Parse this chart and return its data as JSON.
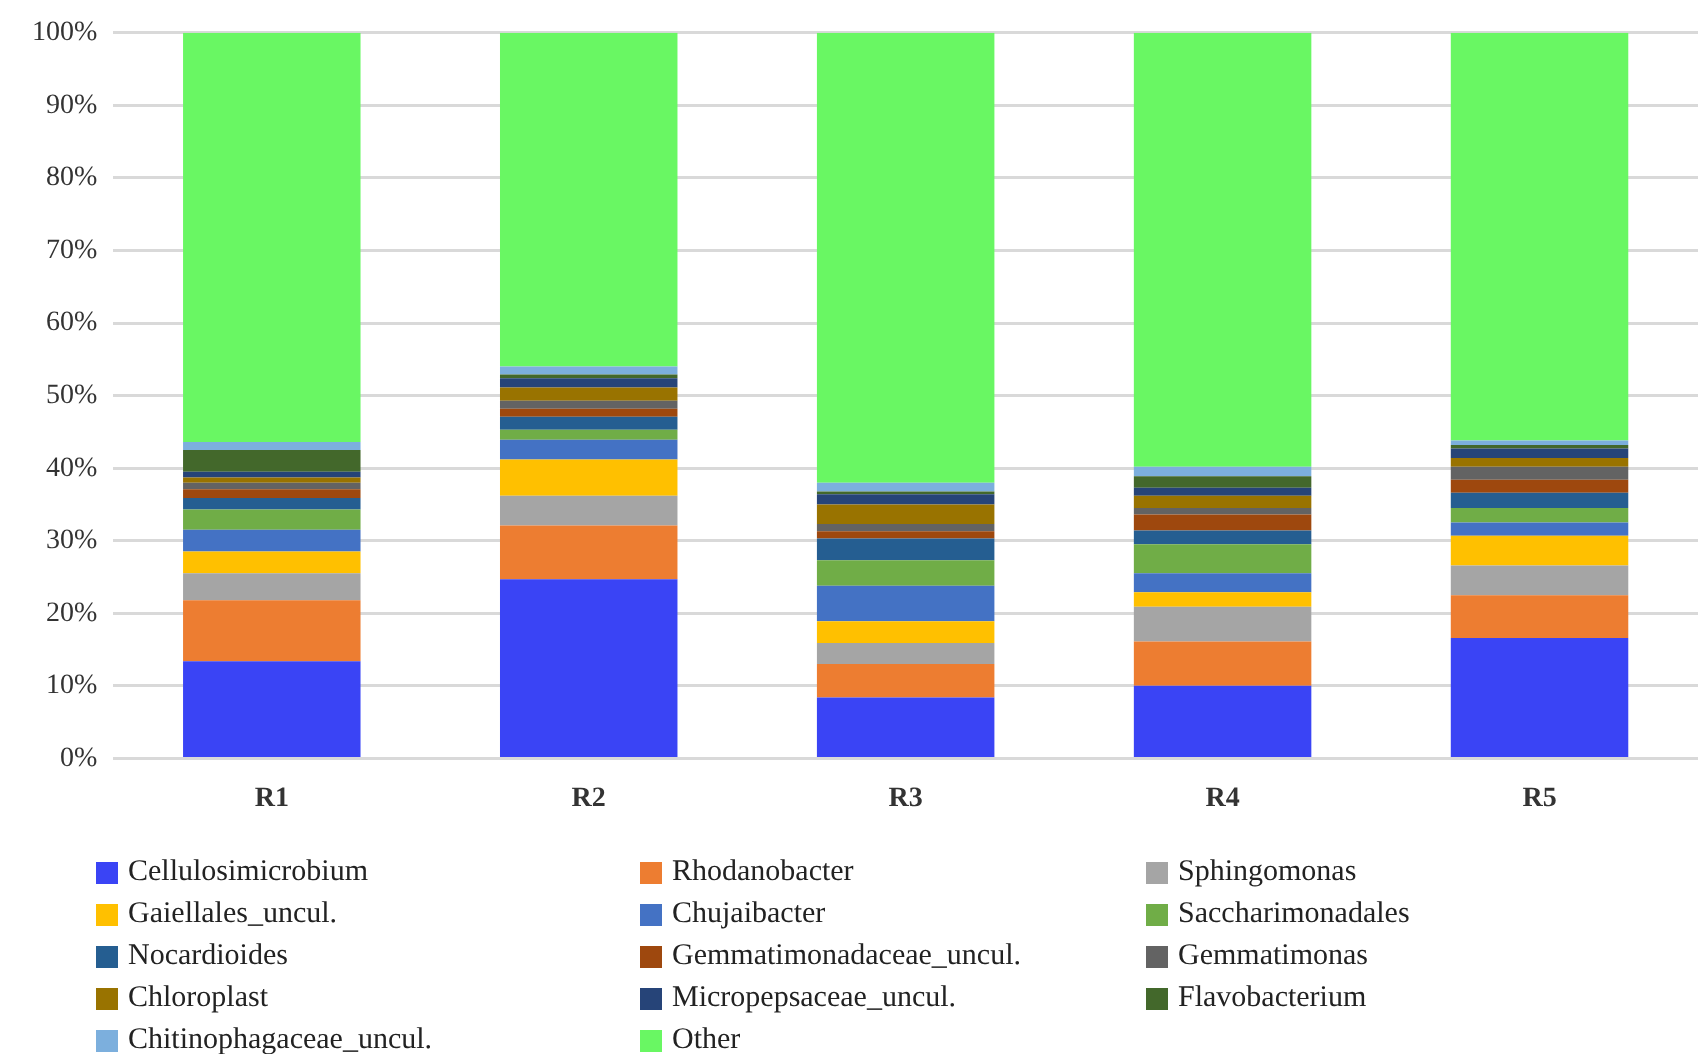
{
  "chart_data": {
    "type": "bar",
    "stacked": true,
    "categories": [
      "R1",
      "R2",
      "R3",
      "R4",
      "R5"
    ],
    "ylim": [
      0,
      100
    ],
    "yticks": [
      {
        "value": 0,
        "label": "0%"
      },
      {
        "value": 10,
        "label": "10%"
      },
      {
        "value": 20,
        "label": "20%"
      },
      {
        "value": 30,
        "label": "30%"
      },
      {
        "value": 40,
        "label": "40%"
      },
      {
        "value": 50,
        "label": "50%"
      },
      {
        "value": 60,
        "label": "60%"
      },
      {
        "value": 70,
        "label": "70%"
      },
      {
        "value": 80,
        "label": "80%"
      },
      {
        "value": 90,
        "label": "90%"
      },
      {
        "value": 100,
        "label": "100%"
      }
    ],
    "grid": "y",
    "legend": "bottom",
    "series": [
      {
        "name": "Cellulosimicrobium",
        "color": "#3a44f5",
        "values": [
          13.4,
          24.7,
          8.4,
          10.0,
          16.6
        ]
      },
      {
        "name": "Rhodanobacter",
        "color": "#ed7d31",
        "values": [
          8.4,
          7.4,
          4.6,
          6.1,
          5.9
        ]
      },
      {
        "name": "Sphingomonas",
        "color": "#a5a5a5",
        "values": [
          3.7,
          4.1,
          2.9,
          4.8,
          4.1
        ]
      },
      {
        "name": "Gaiellales_uncul.",
        "color": "#ffc000",
        "values": [
          3.0,
          5.0,
          3.0,
          2.0,
          4.1
        ]
      },
      {
        "name": "Chujaibacter",
        "color": "#4472c4",
        "values": [
          3.0,
          2.7,
          4.9,
          2.6,
          1.8
        ]
      },
      {
        "name": "Saccharimonadales",
        "color": "#70ad47",
        "values": [
          2.8,
          1.4,
          3.5,
          4.0,
          2.0
        ]
      },
      {
        "name": "Nocardioides",
        "color": "#255e91",
        "values": [
          1.6,
          1.8,
          3.0,
          1.9,
          2.1
        ]
      },
      {
        "name": "Gemmatimonadaceae_uncul.",
        "color": "#9e480e",
        "values": [
          1.2,
          1.1,
          1.0,
          2.2,
          1.8
        ]
      },
      {
        "name": "Gemmatimonas",
        "color": "#636363",
        "values": [
          0.9,
          1.1,
          1.0,
          0.9,
          1.8
        ]
      },
      {
        "name": "Chloroplast",
        "color": "#997300",
        "values": [
          0.7,
          1.8,
          2.7,
          1.7,
          1.2
        ]
      },
      {
        "name": "Micropepsaceae_uncul.",
        "color": "#264478",
        "values": [
          0.8,
          1.3,
          1.4,
          1.1,
          1.3
        ]
      },
      {
        "name": "Flavobacterium",
        "color": "#43682b",
        "values": [
          3.0,
          0.5,
          0.4,
          1.6,
          0.5
        ]
      },
      {
        "name": "Chitinophagaceae_uncul.",
        "color": "#7cafdd",
        "values": [
          1.1,
          1.1,
          1.2,
          1.3,
          0.6
        ]
      },
      {
        "name": "Other",
        "color": "#69f763",
        "values": [
          56.4,
          46.0,
          62.0,
          59.8,
          56.2
        ]
      }
    ]
  }
}
